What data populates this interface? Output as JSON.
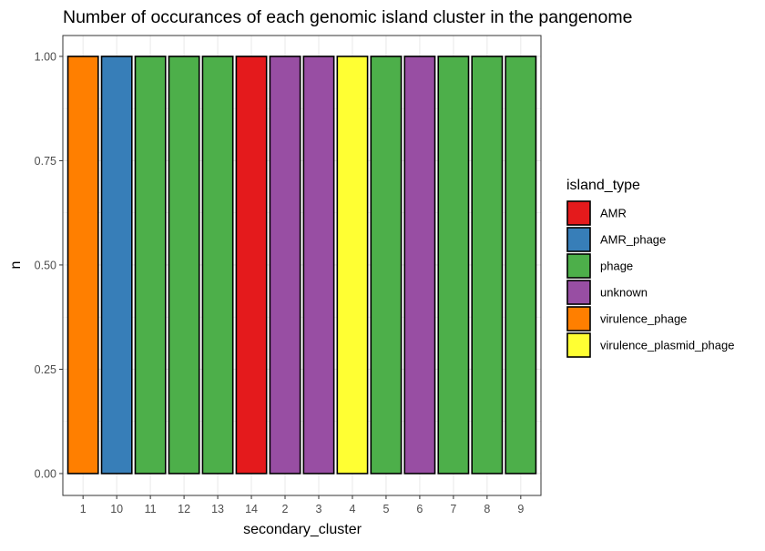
{
  "chart_data": {
    "type": "bar",
    "title": "Number of occurances of each genomic island cluster in the pangenome",
    "xlabel": "secondary_cluster",
    "ylabel": "n",
    "ylim": [
      0,
      1.05
    ],
    "yticks": [
      0.0,
      0.25,
      0.5,
      0.75,
      1.0
    ],
    "ytick_labels": [
      "0.00",
      "0.25",
      "0.50",
      "0.75",
      "1.00"
    ],
    "categories": [
      "1",
      "10",
      "11",
      "12",
      "13",
      "14",
      "2",
      "3",
      "4",
      "5",
      "6",
      "7",
      "8",
      "9"
    ],
    "values": [
      1,
      1,
      1,
      1,
      1,
      1,
      1,
      1,
      1,
      1,
      1,
      1,
      1,
      1
    ],
    "island_type": [
      "virulence_phage",
      "AMR_phage",
      "phage",
      "phage",
      "phage",
      "AMR",
      "unknown",
      "unknown",
      "virulence_plasmid_phage",
      "phage",
      "unknown",
      "phage",
      "phage",
      "phage"
    ],
    "legend": {
      "title": "island_type",
      "placement": "right",
      "entries": [
        {
          "label": "AMR",
          "color": "#E41A1C"
        },
        {
          "label": "AMR_phage",
          "color": "#377EB8"
        },
        {
          "label": "phage",
          "color": "#4DAF4A"
        },
        {
          "label": "unknown",
          "color": "#984EA3"
        },
        {
          "label": "virulence_phage",
          "color": "#FF7F00"
        },
        {
          "label": "virulence_plasmid_phage",
          "color": "#FFFF33"
        }
      ]
    },
    "grid": true,
    "bar_outline_color": "#000000"
  }
}
